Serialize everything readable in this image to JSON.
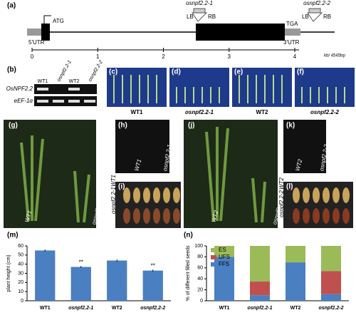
{
  "panel_labels": [
    "(a)",
    "(b)",
    "(c)",
    "(d)",
    "(e)",
    "(f)",
    "(g)",
    "(h)",
    "(i)",
    "(j)",
    "(k)",
    "(l)"
  ],
  "gene_diagram": {
    "start_codon": "ATG",
    "stop_codon": "TGA",
    "utr5": "5'UTR",
    "utr3": "3'UTR",
    "insert1": {
      "name": "osnpf2.2-1",
      "lb": "LB",
      "rb": "RB"
    },
    "insert2": {
      "name": "osnpf2.2-2",
      "lb": "LB",
      "rb": "RB"
    },
    "scale_ticks": [
      0,
      1,
      2,
      3,
      4
    ],
    "scale_unit": "kb/ 4545bp"
  },
  "gel": {
    "lanes": [
      "WT1",
      "osnpf2.2-1",
      "WT2",
      "osnpf2.2-2"
    ],
    "genes": [
      "OsNPF2.2",
      "eEF-1α"
    ]
  },
  "seedling_labels": [
    "WT1",
    "osnpf2.2-1",
    "WT2",
    "osnpf2.2-2"
  ],
  "plant_labels": {
    "g": [
      "WT1",
      "osnpf2.2-1"
    ],
    "h": [
      "WT1",
      "osnpf2.2-1"
    ],
    "i": [
      "osnpf2.2-1",
      "WT1"
    ],
    "j": [
      "WT2",
      "osnpf2.2-2"
    ],
    "k": [
      "WT2",
      "osnpf2.2-2"
    ],
    "l": [
      "osnpf2.2-2",
      "WT2"
    ]
  },
  "chart_data": [
    {
      "type": "bar",
      "title": "(m)",
      "y_label": "plant height (cm)",
      "categories": [
        "WT1",
        "osnpf2.2-1",
        "WT2",
        "osnpf2.2-2"
      ],
      "values": [
        55,
        37,
        44,
        33
      ],
      "errors": [
        1,
        1,
        1,
        1
      ],
      "annotations": [
        null,
        "**",
        null,
        "**"
      ],
      "color": "#4a7fc1",
      "ylim": [
        0,
        60
      ],
      "yticks": [
        0,
        10,
        20,
        30,
        40,
        50,
        60
      ]
    },
    {
      "type": "stacked_bar",
      "title": "(n)",
      "y_label": "% of different filled seeds",
      "categories": [
        "WT1",
        "osnpf2.2-1",
        "WT2",
        "osnpf2.2-2"
      ],
      "series": [
        {
          "name": "FFS",
          "color": "#4a7fc1",
          "values": [
            80,
            10,
            70,
            12
          ]
        },
        {
          "name": "UFS",
          "color": "#c0504d",
          "values": [
            0,
            25,
            0,
            42
          ]
        },
        {
          "name": "ES",
          "color": "#9bbb59",
          "values": [
            20,
            65,
            30,
            46
          ]
        }
      ],
      "ylim": [
        0,
        100
      ],
      "yticks": [
        0,
        20,
        40,
        60,
        80,
        100
      ],
      "legend": "upper-left"
    }
  ]
}
